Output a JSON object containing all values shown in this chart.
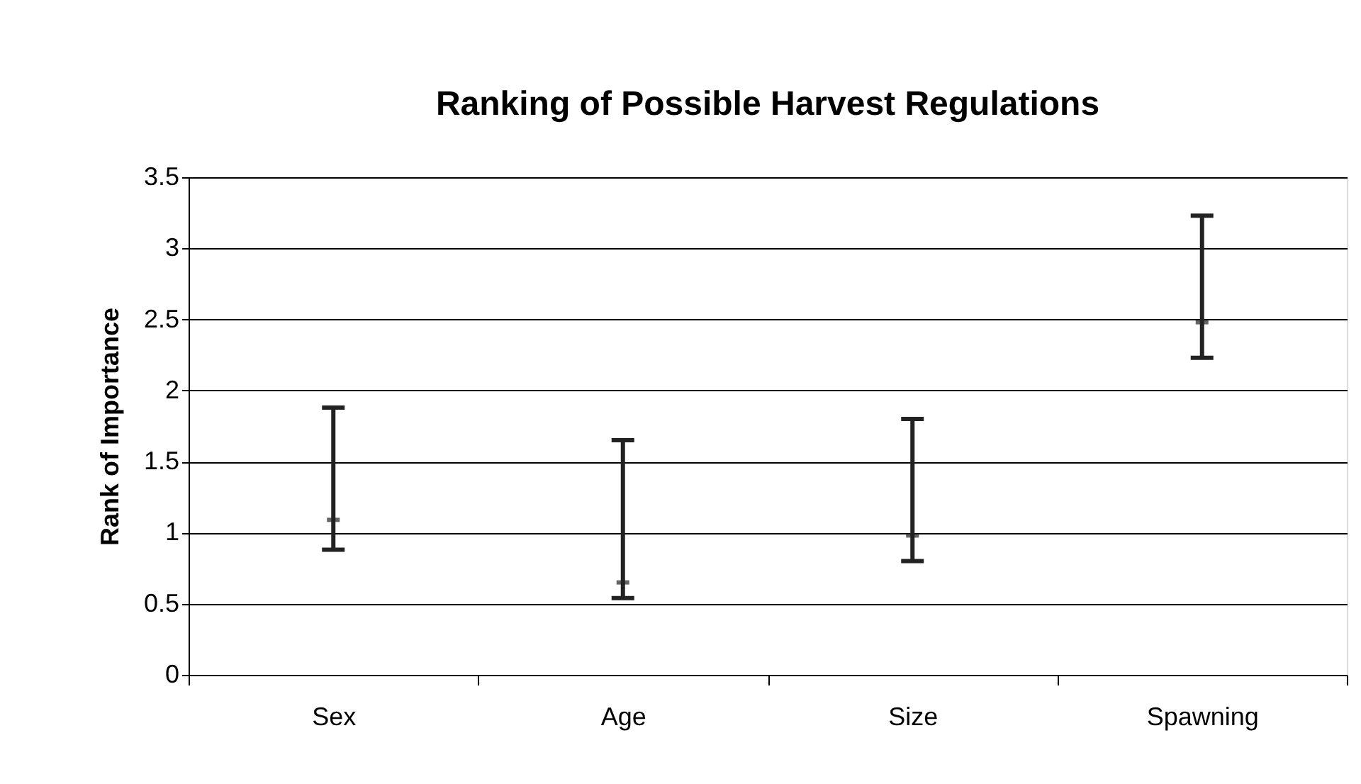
{
  "chart_data": {
    "type": "scatter",
    "title": "Ranking of Possible Harvest Regulations",
    "ylabel": "Rank of Importance",
    "categories": [
      "Sex",
      "Age",
      "Size",
      "Spawning"
    ],
    "series": [
      {
        "color": "#222222",
        "values": [
          1.09,
          0.65,
          0.98,
          2.48
        ],
        "errors": [
          [
            0.88,
            1.88
          ],
          [
            0.54,
            1.65
          ],
          [
            0.8,
            1.8
          ],
          [
            2.23,
            3.23
          ]
        ]
      }
    ],
    "ylim": [
      0,
      3.5
    ],
    "yticks": [
      0,
      0.5,
      1,
      1.5,
      2,
      2.5,
      3,
      3.5
    ],
    "grid": "y"
  }
}
